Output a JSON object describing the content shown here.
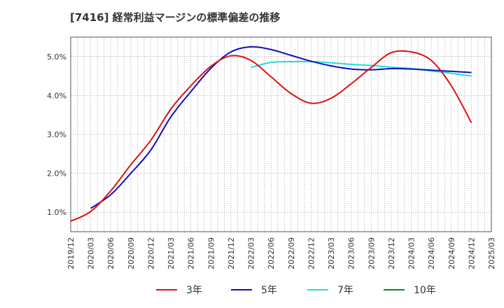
{
  "chart_data": {
    "type": "line",
    "title": "[7416]  経常利益マージンの標準偏差の推移",
    "xlabel": "",
    "ylabel": "",
    "x": [
      "2019/12",
      "2020/03",
      "2020/06",
      "2020/09",
      "2020/12",
      "2021/03",
      "2021/06",
      "2021/09",
      "2021/12",
      "2022/03",
      "2022/06",
      "2022/09",
      "2022/12",
      "2023/03",
      "2023/06",
      "2023/09",
      "2023/12",
      "2024/03",
      "2024/06",
      "2024/09",
      "2024/12",
      "2025/03"
    ],
    "ylim": [
      0.5,
      5.5
    ],
    "yticks": [
      1.0,
      2.0,
      3.0,
      4.0,
      5.0
    ],
    "ytick_labels": [
      "1.0%",
      "2.0%",
      "3.0%",
      "4.0%",
      "5.0%"
    ],
    "grid": true,
    "legend_position": "bottom",
    "series": [
      {
        "name": "3年",
        "color": "#dd1111",
        "values": [
          0.77,
          1.02,
          1.55,
          2.22,
          2.85,
          3.65,
          4.25,
          4.75,
          5.02,
          4.9,
          4.48,
          4.05,
          3.8,
          3.93,
          4.3,
          4.72,
          5.1,
          5.12,
          4.9,
          4.25,
          3.3,
          null
        ]
      },
      {
        "name": "5年",
        "color": "#1111bb",
        "values": [
          null,
          1.1,
          1.45,
          2.0,
          2.6,
          3.45,
          4.1,
          4.7,
          5.12,
          5.25,
          5.18,
          5.03,
          4.88,
          4.76,
          4.68,
          4.66,
          4.69,
          4.68,
          4.65,
          4.62,
          4.59,
          null
        ]
      },
      {
        "name": "7年",
        "color": "#22dddd",
        "values": [
          null,
          null,
          null,
          null,
          null,
          null,
          null,
          null,
          null,
          4.72,
          4.85,
          4.87,
          4.87,
          4.84,
          4.8,
          4.77,
          4.73,
          4.69,
          4.63,
          4.57,
          4.5,
          null
        ]
      },
      {
        "name": "10年",
        "color": "#118811",
        "values": [
          null,
          null,
          null,
          null,
          null,
          null,
          null,
          null,
          null,
          null,
          null,
          null,
          null,
          null,
          null,
          null,
          null,
          null,
          null,
          null,
          null,
          null
        ]
      }
    ]
  }
}
